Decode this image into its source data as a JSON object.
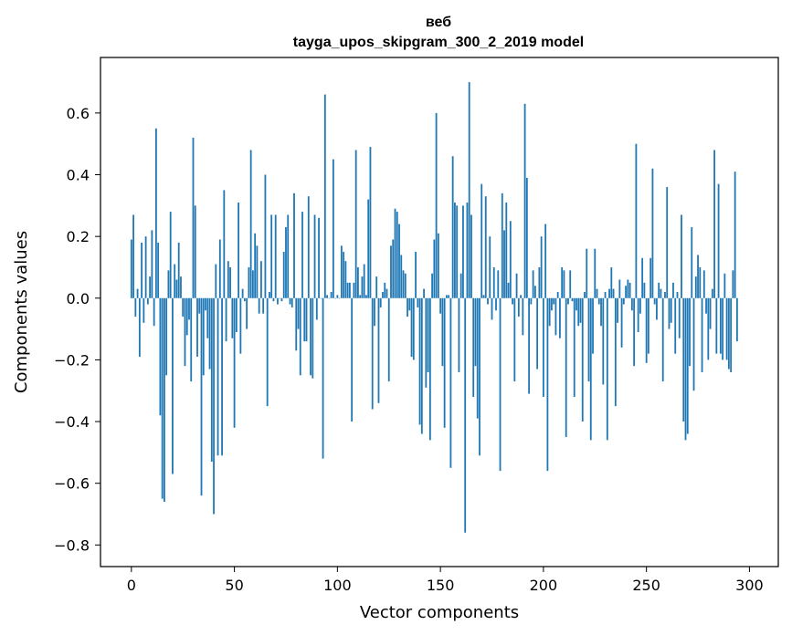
{
  "chart_data": {
    "type": "bar",
    "title_line1": "веб",
    "title_line2": "tayga_upos_skipgram_300_2_2019 model",
    "xlabel": "Vector components",
    "ylabel": "Components values",
    "xlim": [
      -15,
      314
    ],
    "ylim": [
      -0.87,
      0.78
    ],
    "xticks": [
      0,
      50,
      100,
      150,
      200,
      250,
      300
    ],
    "yticks": [
      -0.8,
      -0.6,
      -0.4,
      -0.2,
      0.0,
      0.2,
      0.4,
      0.6
    ],
    "ytick_labels": [
      "−0.8",
      "−0.6",
      "−0.4",
      "−0.2",
      "0.0",
      "0.2",
      "0.4",
      "0.6"
    ],
    "bar_color": "#1f77b4",
    "values": [
      0.19,
      0.27,
      -0.06,
      0.03,
      -0.19,
      0.18,
      -0.08,
      0.2,
      -0.02,
      0.07,
      0.22,
      -0.09,
      0.55,
      0.18,
      -0.38,
      -0.65,
      -0.66,
      -0.25,
      0.09,
      0.28,
      -0.57,
      0.11,
      0.06,
      0.18,
      0.07,
      -0.06,
      -0.22,
      -0.12,
      -0.07,
      -0.27,
      0.52,
      0.3,
      -0.19,
      -0.05,
      -0.64,
      -0.25,
      -0.04,
      -0.13,
      -0.23,
      -0.53,
      -0.7,
      0.11,
      -0.51,
      0.19,
      -0.51,
      0.35,
      -0.14,
      0.12,
      0.1,
      -0.13,
      -0.42,
      -0.11,
      0.31,
      -0.18,
      0.03,
      -0.01,
      -0.1,
      0.1,
      0.48,
      0.09,
      0.21,
      0.17,
      -0.05,
      0.12,
      -0.05,
      0.4,
      -0.35,
      0.02,
      0.27,
      -0.01,
      0.27,
      -0.02,
      0.0,
      -0.01,
      0.15,
      0.23,
      0.27,
      -0.02,
      -0.03,
      0.34,
      -0.17,
      -0.1,
      -0.25,
      0.28,
      -0.14,
      -0.14,
      0.33,
      -0.25,
      -0.26,
      0.27,
      -0.07,
      0.26,
      0.0,
      -0.52,
      0.66,
      0.01,
      0.0,
      0.02,
      0.45,
      0.0,
      0.01,
      0.0,
      0.17,
      0.15,
      0.12,
      0.05,
      0.05,
      -0.4,
      0.05,
      0.48,
      0.1,
      0.01,
      0.07,
      0.11,
      0.01,
      0.32,
      0.49,
      -0.36,
      -0.09,
      0.07,
      -0.34,
      -0.03,
      0.02,
      0.05,
      0.03,
      -0.27,
      0.17,
      0.19,
      0.29,
      0.28,
      0.24,
      0.14,
      0.09,
      0.08,
      -0.06,
      -0.04,
      -0.19,
      -0.2,
      0.15,
      -0.03,
      -0.41,
      -0.44,
      0.03,
      -0.29,
      -0.24,
      -0.46,
      0.08,
      0.19,
      0.6,
      0.21,
      -0.05,
      -0.22,
      -0.42,
      0.01,
      0.01,
      -0.55,
      0.46,
      0.31,
      0.3,
      -0.24,
      0.08,
      0.3,
      -0.76,
      0.31,
      0.7,
      0.27,
      -0.32,
      -0.22,
      -0.39,
      -0.51,
      0.37,
      0.01,
      0.33,
      -0.02,
      0.2,
      -0.07,
      0.1,
      -0.04,
      0.09,
      -0.56,
      0.34,
      0.22,
      0.31,
      0.05,
      0.25,
      -0.02,
      -0.27,
      0.08,
      -0.06,
      0.01,
      -0.12,
      0.63,
      0.39,
      -0.31,
      -0.02,
      0.09,
      0.04,
      -0.23,
      0.1,
      0.2,
      -0.32,
      0.24,
      -0.56,
      -0.09,
      -0.04,
      -0.02,
      -0.12,
      0.02,
      -0.13,
      0.1,
      0.09,
      -0.45,
      -0.02,
      0.09,
      -0.01,
      -0.32,
      -0.04,
      -0.09,
      -0.08,
      -0.4,
      0.02,
      0.16,
      -0.27,
      -0.46,
      -0.18,
      0.16,
      0.03,
      -0.02,
      -0.09,
      -0.28,
      0.02,
      -0.46,
      0.03,
      0.1,
      0.03,
      -0.35,
      -0.08,
      0.06,
      -0.16,
      -0.02,
      0.04,
      0.06,
      0.05,
      -0.04,
      -0.22,
      0.5,
      -0.11,
      -0.05,
      0.13,
      0.05,
      -0.21,
      -0.18,
      0.13,
      0.42,
      -0.02,
      -0.07,
      0.05,
      0.03,
      -0.27,
      0.02,
      0.36,
      -0.1,
      -0.08,
      0.05,
      -0.18,
      0.02,
      -0.13,
      0.27,
      -0.4,
      -0.46,
      -0.44,
      -0.22,
      0.23,
      -0.3,
      0.07,
      0.14,
      0.1,
      -0.24,
      0.09,
      -0.05,
      -0.2,
      -0.1,
      0.03,
      0.48,
      -0.18,
      0.37,
      -0.18,
      -0.2,
      0.08,
      -0.2,
      -0.23,
      -0.24,
      0.09,
      0.41,
      -0.14
    ]
  }
}
